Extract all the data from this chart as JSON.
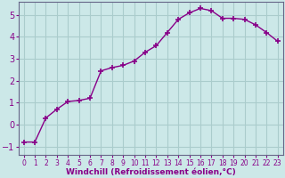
{
  "x": [
    0,
    1,
    2,
    3,
    4,
    5,
    6,
    7,
    8,
    9,
    10,
    11,
    12,
    13,
    14,
    15,
    16,
    17,
    18,
    19,
    20,
    21,
    22,
    23
  ],
  "y": [
    -0.8,
    -0.8,
    0.3,
    0.7,
    1.05,
    1.1,
    1.2,
    2.45,
    2.6,
    2.7,
    2.9,
    3.3,
    3.6,
    4.2,
    4.8,
    5.1,
    5.3,
    5.2,
    4.85,
    4.85,
    4.8,
    4.55,
    4.2,
    3.8
  ],
  "line_color": "#880088",
  "marker": "+",
  "markersize": 5,
  "linewidth": 1.0,
  "bg_color": "#cce8e8",
  "grid_color": "#aacccc",
  "xlabel": "Windchill (Refroidissement éolien,°C)",
  "xlabel_color": "#880088",
  "tick_color": "#880088",
  "ylabel_ticks": [
    -1,
    0,
    1,
    2,
    3,
    4,
    5
  ],
  "xlim": [
    -0.5,
    23.5
  ],
  "ylim": [
    -1.4,
    5.6
  ],
  "xtick_labels": [
    "0",
    "1",
    "2",
    "3",
    "4",
    "5",
    "6",
    "7",
    "8",
    "9",
    "10",
    "11",
    "12",
    "13",
    "14",
    "15",
    "16",
    "17",
    "18",
    "19",
    "20",
    "21",
    "22",
    "23"
  ],
  "xlabel_fontsize": 6.5,
  "ytick_fontsize": 7,
  "xtick_fontsize": 5.5
}
